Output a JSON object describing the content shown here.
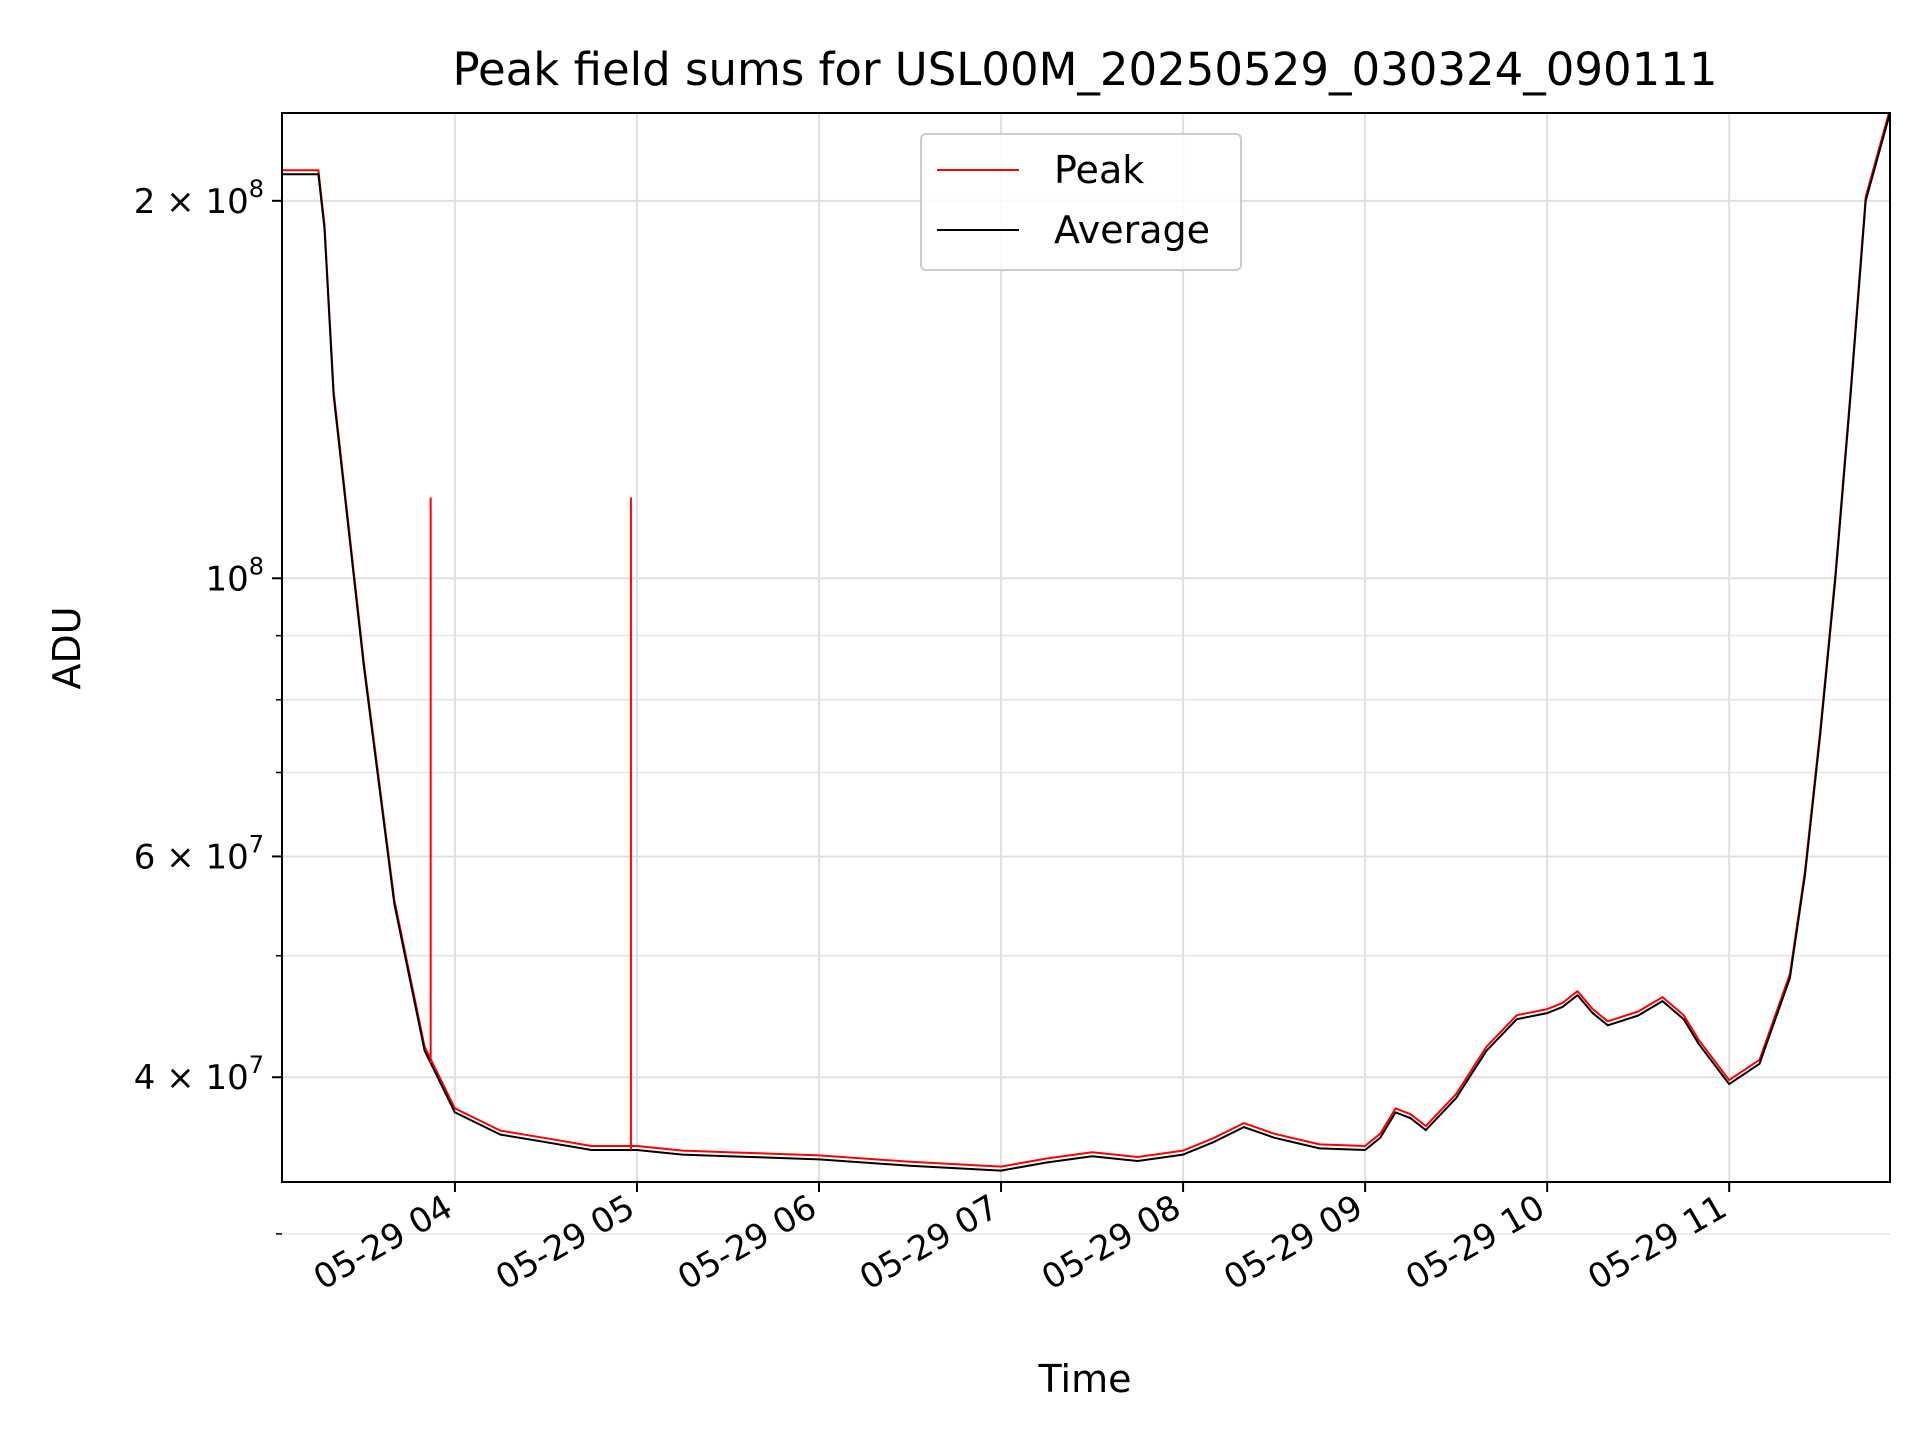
{
  "chart_data": {
    "type": "line",
    "title": "Peak field sums for USL00M_20250529_030324_090111",
    "xlabel": "Time",
    "ylabel": "ADU",
    "yscale": "log",
    "grid": true,
    "legend_position": "top-center",
    "xlim": [
      "2025-05-29 03:03",
      "2025-05-29 11:53"
    ],
    "ylim": [
      33000000,
      235000000
    ],
    "x_ticks": [
      "05-29 04",
      "05-29 05",
      "05-29 06",
      "05-29 07",
      "05-29 08",
      "05-29 09",
      "05-29 10",
      "05-29 11"
    ],
    "y_ticks": [
      {
        "value": 40000000,
        "label_base": "4 × 10",
        "label_exp": "7"
      },
      {
        "value": 60000000,
        "label_base": "6 × 10",
        "label_exp": "7"
      },
      {
        "value": 100000000,
        "label_base": "10",
        "label_exp": "8"
      },
      {
        "value": 200000000,
        "label_base": "2 × 10",
        "label_exp": "8"
      }
    ],
    "series": [
      {
        "name": "Peak",
        "color": "#ff0000"
      },
      {
        "name": "Average",
        "color": "#000000"
      }
    ],
    "x": [
      "2025-05-29 03:03",
      "2025-05-29 03:15",
      "2025-05-29 03:17",
      "2025-05-29 03:20",
      "2025-05-29 03:30",
      "2025-05-29 03:40",
      "2025-05-29 03:50",
      "2025-05-29 04:00",
      "2025-05-29 04:15",
      "2025-05-29 04:30",
      "2025-05-29 04:45",
      "2025-05-29 05:00",
      "2025-05-29 05:15",
      "2025-05-29 05:30",
      "2025-05-29 06:00",
      "2025-05-29 06:30",
      "2025-05-29 07:00",
      "2025-05-29 07:15",
      "2025-05-29 07:30",
      "2025-05-29 07:45",
      "2025-05-29 08:00",
      "2025-05-29 08:10",
      "2025-05-29 08:20",
      "2025-05-29 08:30",
      "2025-05-29 08:45",
      "2025-05-29 09:00",
      "2025-05-29 09:05",
      "2025-05-29 09:10",
      "2025-05-29 09:15",
      "2025-05-29 09:20",
      "2025-05-29 09:30",
      "2025-05-29 09:40",
      "2025-05-29 09:50",
      "2025-05-29 10:00",
      "2025-05-29 10:05",
      "2025-05-29 10:10",
      "2025-05-29 10:15",
      "2025-05-29 10:20",
      "2025-05-29 10:30",
      "2025-05-29 10:38",
      "2025-05-29 10:45",
      "2025-05-29 10:50",
      "2025-05-29 11:00",
      "2025-05-29 11:10",
      "2025-05-29 11:20",
      "2025-05-29 11:25",
      "2025-05-29 11:30",
      "2025-05-29 11:35",
      "2025-05-29 11:40",
      "2025-05-29 11:45",
      "2025-05-29 11:53"
    ],
    "average_values": [
      210000000,
      210000000,
      190000000,
      140000000,
      85000000,
      55000000,
      42000000,
      37500000,
      36000000,
      35500000,
      35000000,
      35000000,
      34700000,
      34600000,
      34400000,
      34000000,
      33700000,
      34200000,
      34600000,
      34300000,
      34700000,
      35500000,
      36500000,
      35800000,
      35100000,
      35000000,
      35800000,
      37500000,
      37100000,
      36300000,
      38500000,
      42000000,
      44500000,
      45000000,
      45500000,
      46500000,
      45000000,
      44000000,
      44800000,
      46000000,
      44500000,
      42500000,
      39500000,
      41000000,
      48000000,
      58000000,
      75000000,
      100000000,
      140000000,
      200000000,
      235000000
    ],
    "peak_spikes": [
      {
        "x": "2025-05-29 03:52",
        "value": 116000000
      },
      {
        "x": "2025-05-29 04:58",
        "value": 116000000
      }
    ]
  }
}
